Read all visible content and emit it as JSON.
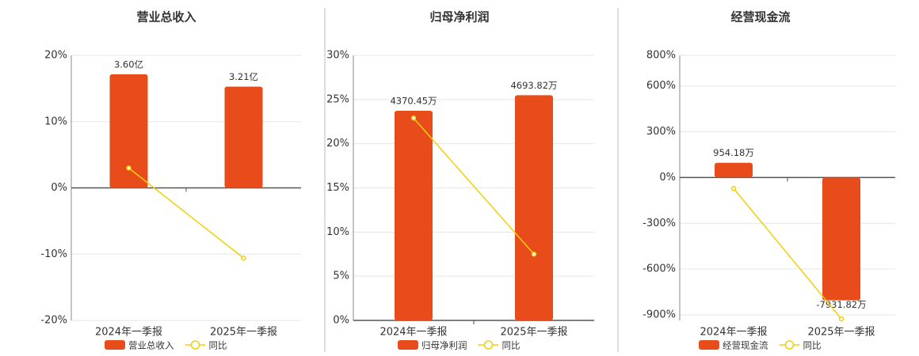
{
  "chart_data": [
    {
      "type": "bar",
      "title": "营业总收入",
      "categories": [
        "2024年一季报",
        "2025年一季报"
      ],
      "ylim": [
        -20,
        20
      ],
      "yticks": [
        {
          "value": -20,
          "label": "-20%"
        },
        {
          "value": -10,
          "label": "-10%"
        },
        {
          "value": 0,
          "label": "0%"
        },
        {
          "value": 10,
          "label": "10%"
        },
        {
          "value": 20,
          "label": "20%"
        }
      ],
      "y2lim": [
        -4.2,
        4.2
      ],
      "grid": true,
      "series": [
        {
          "name": "营业总收入",
          "type": "bar",
          "axis": "y2",
          "color": "#e84c1a",
          "values": [
            3.6,
            3.21
          ],
          "value_labels": [
            "3.60亿",
            "3.21亿"
          ]
        },
        {
          "name": "同比",
          "type": "line",
          "color": "#f2cf0c",
          "values": [
            3.0,
            -10.6
          ]
        }
      ]
    },
    {
      "type": "bar",
      "title": "归母净利润",
      "categories": [
        "2024年一季报",
        "2025年一季报"
      ],
      "ylim": [
        0,
        30
      ],
      "yticks": [
        {
          "value": 0,
          "label": "0%"
        },
        {
          "value": 5,
          "label": "5%"
        },
        {
          "value": 10,
          "label": "10%"
        },
        {
          "value": 15,
          "label": "15%"
        },
        {
          "value": 20,
          "label": "20%"
        },
        {
          "value": 25,
          "label": "25%"
        },
        {
          "value": 30,
          "label": "30%"
        }
      ],
      "y2lim": [
        0,
        5525
      ],
      "grid": true,
      "series": [
        {
          "name": "归母净利润",
          "type": "bar",
          "axis": "y2",
          "color": "#e84c1a",
          "values": [
            4370.45,
            4693.82
          ],
          "value_labels": [
            "4370.45万",
            "4693.82万"
          ]
        },
        {
          "name": "同比",
          "type": "line",
          "color": "#f2cf0c",
          "values": [
            22.9,
            7.5
          ]
        }
      ]
    },
    {
      "type": "bar",
      "title": "经营现金流",
      "categories": [
        "2024年一季报",
        "2025年一季报"
      ],
      "ylim": [
        -936,
        800
      ],
      "yticks": [
        {
          "value": -900,
          "label": "-900%"
        },
        {
          "value": -600,
          "label": "-600%"
        },
        {
          "value": -300,
          "label": "-300%"
        },
        {
          "value": 0,
          "label": "0%"
        },
        {
          "value": 300,
          "label": "300%"
        },
        {
          "value": 600,
          "label": "600%"
        },
        {
          "value": 800,
          "label": "800%"
        }
      ],
      "y2lim": [
        -9230,
        7890
      ],
      "grid": true,
      "series": [
        {
          "name": "经营现金流",
          "type": "bar",
          "axis": "y2",
          "color": "#e84c1a",
          "values": [
            954.18,
            -7931.82
          ],
          "value_labels": [
            "954.18万",
            "-7931.82万"
          ]
        },
        {
          "name": "同比",
          "type": "line",
          "color": "#f2cf0c",
          "values": [
            -72,
            -926
          ]
        }
      ]
    }
  ]
}
